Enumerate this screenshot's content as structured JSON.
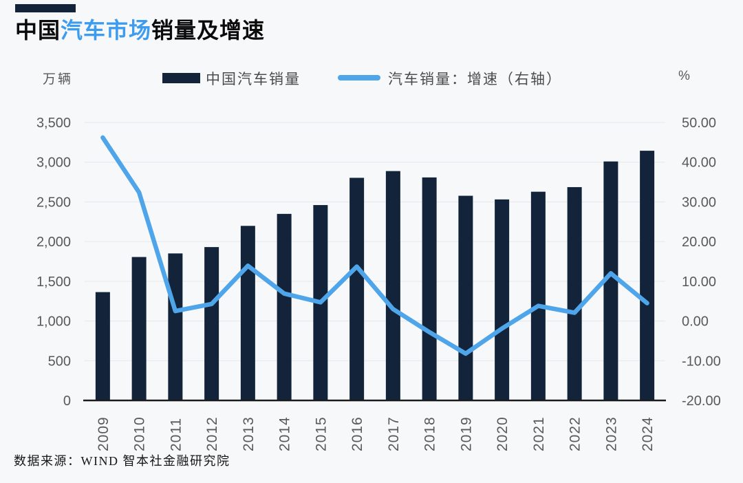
{
  "header": {
    "title_part1": "中国",
    "title_part2": "汽车市场",
    "title_part3": "销量及增速"
  },
  "legend": {
    "left_unit": "万辆",
    "right_unit": "%",
    "bars_label": "中国汽车销量",
    "line_label": "汽车销量：增速（右轴）"
  },
  "footer": {
    "source": "数据来源：WIND 智本社金融研究院"
  },
  "colors": {
    "bar": "#12233A",
    "line": "#4FA5E9",
    "title_accent": "#3E9CEF",
    "background": "#F7F8FA",
    "grid": "#E9EBEF",
    "axis_text": "#58595B",
    "axis_line": "#1C1C1C"
  },
  "chart_data": {
    "type": "bar",
    "subtype": "bar+line combo, dual axis",
    "title": "中国汽车市场销量及增速",
    "categories": [
      "2009",
      "2010",
      "2011",
      "2012",
      "2013",
      "2014",
      "2015",
      "2016",
      "2017",
      "2018",
      "2019",
      "2020",
      "2021",
      "2022",
      "2023",
      "2024"
    ],
    "series": [
      {
        "name": "中国汽车销量",
        "type": "bar",
        "axis": "left",
        "unit": "万辆",
        "values": [
          1364,
          1806,
          1851,
          1931,
          2198,
          2349,
          2460,
          2803,
          2888,
          2808,
          2577,
          2531,
          2628,
          2686,
          3009,
          3144
        ]
      },
      {
        "name": "汽车销量：增速（右轴）",
        "type": "line",
        "axis": "right",
        "unit": "%",
        "values": [
          46.2,
          32.4,
          2.5,
          4.3,
          13.9,
          6.9,
          4.7,
          13.7,
          3.0,
          -2.8,
          -8.2,
          -1.9,
          3.8,
          2.1,
          12.0,
          4.5
        ]
      }
    ],
    "left_axis": {
      "label": "万辆",
      "min": 0,
      "max": 3500,
      "step": 500,
      "ticks": [
        "0",
        "500",
        "1,000",
        "1,500",
        "2,000",
        "2,500",
        "3,000",
        "3,500"
      ]
    },
    "right_axis": {
      "label": "%",
      "min": -20,
      "max": 50,
      "step": 10,
      "ticks": [
        "-20.00",
        "-10.00",
        "0.00",
        "10.00",
        "20.00",
        "30.00",
        "40.00",
        "50.00"
      ]
    },
    "grid": true,
    "legend_position": "top"
  }
}
